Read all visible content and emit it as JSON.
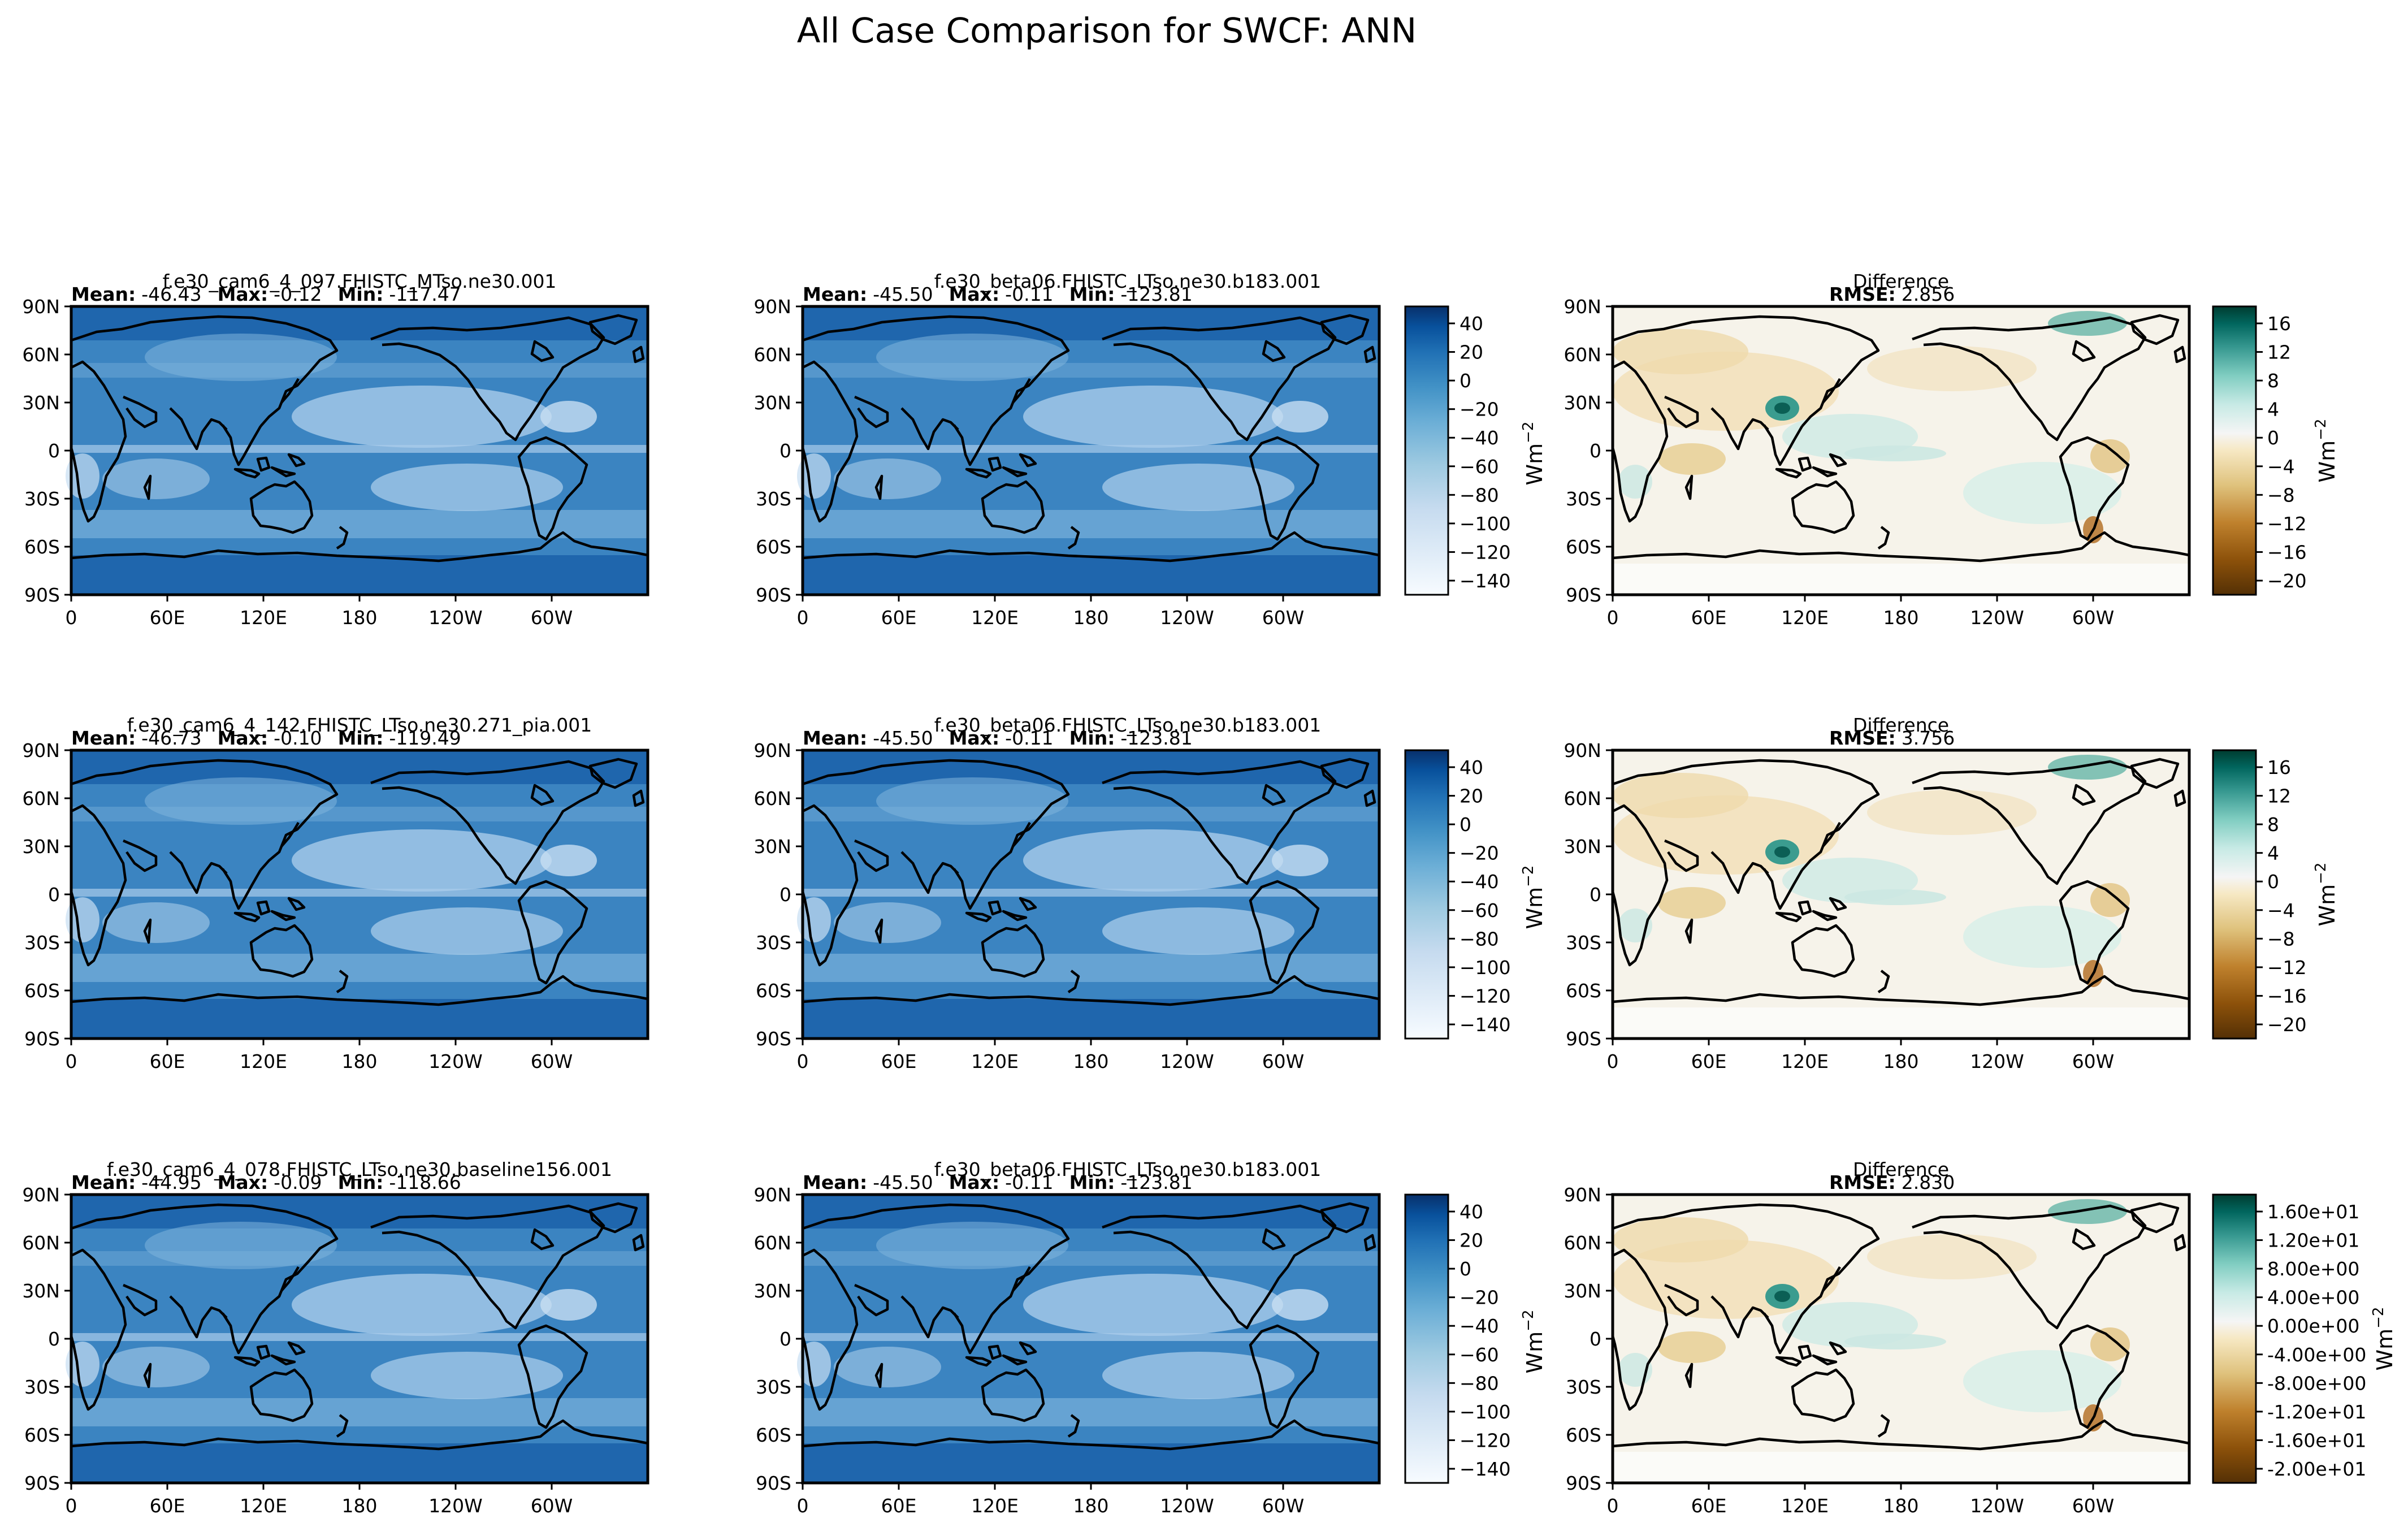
{
  "title": "All Case Comparison for SWCF: ANN",
  "lat_ticks": [
    "90N",
    "60N",
    "30N",
    "0",
    "30S",
    "60S",
    "90S"
  ],
  "lon_ticks": [
    "0",
    "60E",
    "120E",
    "180",
    "120W",
    "60W"
  ],
  "unit_label": "Wm",
  "unit_exponent": "−2",
  "rows": [
    {
      "test": {
        "name": "f.e30_cam6_4_097.FHISTC_MTso.ne30.001",
        "stats": {
          "mean_label": "Mean:",
          "mean": "-46.43",
          "max_label": "Max:",
          "max": "-0.12",
          "min_label": "Min:",
          "min": "-117.47"
        }
      },
      "ref": {
        "name": "f.e30_beta06.FHISTC_LTso.ne30.b183.001",
        "stats": {
          "mean_label": "Mean:",
          "mean": "-45.50",
          "max_label": "Max:",
          "max": "-0.11",
          "min_label": "Min:",
          "min": "-123.81"
        }
      },
      "diff": {
        "name": "Difference",
        "rmse_label": "RMSE:",
        "rmse": "2.856"
      },
      "field_ticks": [
        "40",
        "20",
        "0",
        "−20",
        "−40",
        "−60",
        "−80",
        "−100",
        "−120",
        "−140"
      ],
      "diff_ticks": [
        "16",
        "12",
        "8",
        "4",
        "0",
        "−4",
        "−8",
        "−12",
        "−16",
        "−20"
      ]
    },
    {
      "test": {
        "name": "f.e30_cam6_4_142.FHISTC_LTso.ne30.271_pia.001",
        "stats": {
          "mean_label": "Mean:",
          "mean": "-46.73",
          "max_label": "Max:",
          "max": "-0.10",
          "min_label": "Min:",
          "min": "-119.49"
        }
      },
      "ref": {
        "name": "f.e30_beta06.FHISTC_LTso.ne30.b183.001",
        "stats": {
          "mean_label": "Mean:",
          "mean": "-45.50",
          "max_label": "Max:",
          "max": "-0.11",
          "min_label": "Min:",
          "min": "-123.81"
        }
      },
      "diff": {
        "name": "Difference",
        "rmse_label": "RMSE:",
        "rmse": "3.756"
      },
      "field_ticks": [
        "40",
        "20",
        "0",
        "−20",
        "−40",
        "−60",
        "−80",
        "−100",
        "−120",
        "−140"
      ],
      "diff_ticks": [
        "16",
        "12",
        "8",
        "4",
        "0",
        "−4",
        "−8",
        "−12",
        "−16",
        "−20"
      ]
    },
    {
      "test": {
        "name": "f.e30_cam6_4_078.FHISTC_LTso.ne30.baseline156.001",
        "stats": {
          "mean_label": "Mean:",
          "mean": "-44.95",
          "max_label": "Max:",
          "max": "-0.09",
          "min_label": "Min:",
          "min": "-118.66"
        }
      },
      "ref": {
        "name": "f.e30_beta06.FHISTC_LTso.ne30.b183.001",
        "stats": {
          "mean_label": "Mean:",
          "mean": "-45.50",
          "max_label": "Max:",
          "max": "-0.11",
          "min_label": "Min:",
          "min": "-123.81"
        }
      },
      "diff": {
        "name": "Difference",
        "rmse_label": "RMSE:",
        "rmse": "2.830"
      },
      "field_ticks": [
        "40",
        "20",
        "0",
        "−20",
        "−40",
        "−60",
        "−80",
        "−100",
        "−120",
        "−140"
      ],
      "diff_ticks": [
        "1.60e+01",
        "1.20e+01",
        "8.00e+00",
        "4.00e+00",
        "0.00e+00",
        "-4.00e+00",
        "-8.00e+00",
        "-1.20e+01",
        "-1.60e+01",
        "-2.00e+01"
      ]
    }
  ],
  "colors": {
    "field_scale": [
      "#f7fbff",
      "#deebf7",
      "#c6dbef",
      "#9ecae1",
      "#6baed6",
      "#4292c6",
      "#2171b5",
      "#08519c",
      "#08306b"
    ],
    "diff_scale": [
      "#543005",
      "#8c510a",
      "#bf812d",
      "#dfc27d",
      "#f6e8c3",
      "#f5f5f5",
      "#c7eae5",
      "#80cdc1",
      "#35978f",
      "#01665e",
      "#003c30"
    ],
    "coastline": "#000000"
  }
}
